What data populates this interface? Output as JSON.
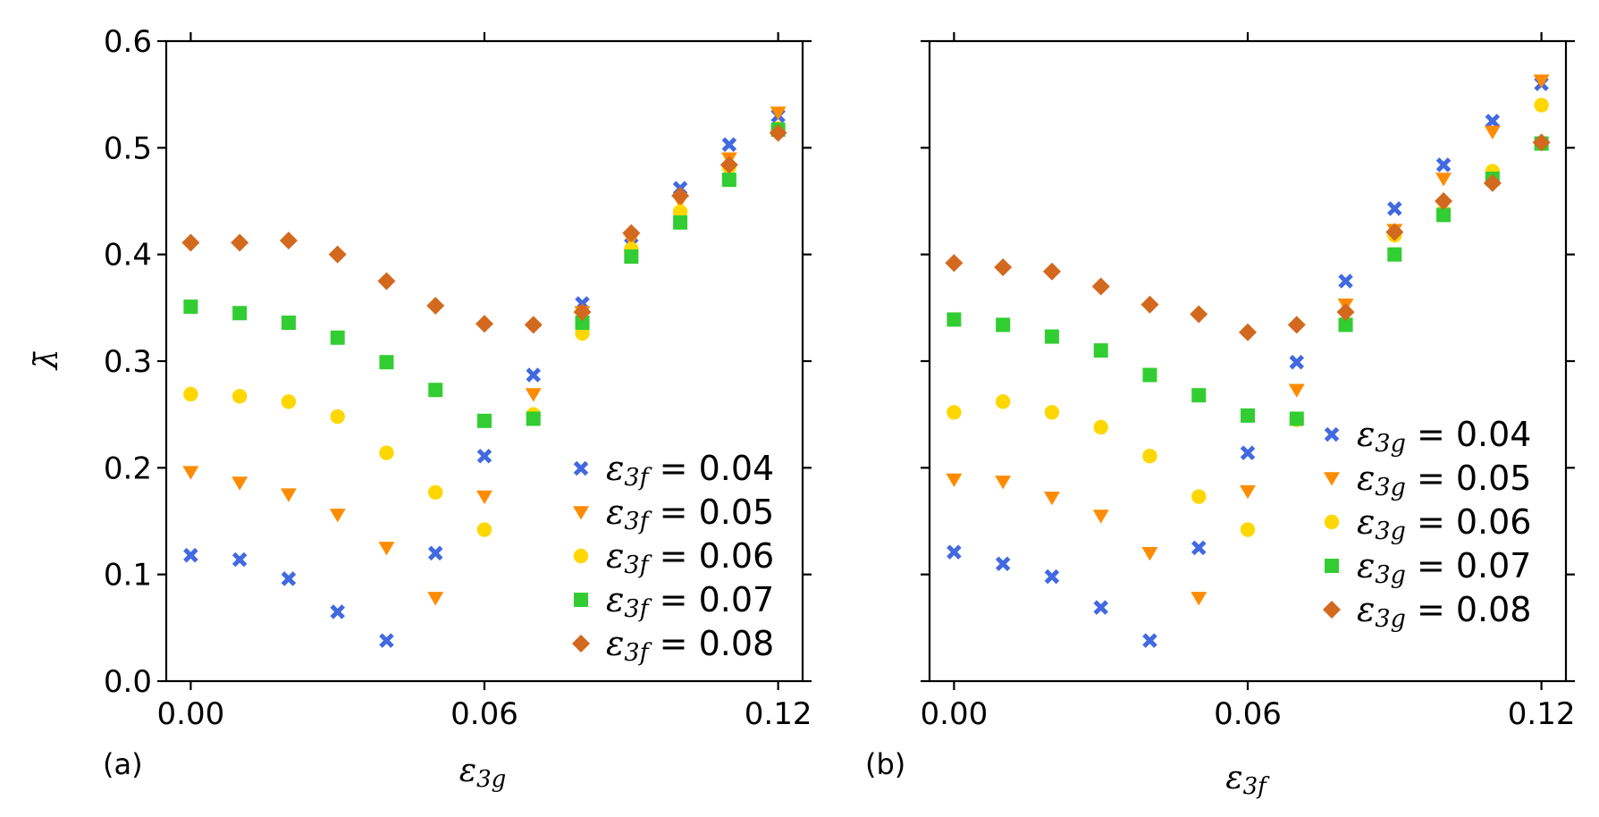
{
  "colors": {
    "s1": "#4169e1",
    "s2": "#ff8c00",
    "s3": "#ffd700",
    "s4": "#32cd32",
    "s5": "#d2691e"
  },
  "axes": {
    "ylabel": "λ̄",
    "yticks": [
      "0.0",
      "0.1",
      "0.2",
      "0.3",
      "0.4",
      "0.5",
      "0.6"
    ],
    "xticks": [
      "0.00",
      "0.06",
      "0.12"
    ]
  },
  "chart_data": [
    {
      "type": "scatter",
      "panel_label": "(a)",
      "xlabel_main": "ε",
      "xlabel_sub": "3g",
      "ylim": [
        0,
        0.6
      ],
      "xlim": [
        -0.005,
        0.125
      ],
      "xticks": [
        0,
        0.06,
        0.12
      ],
      "yticks": [
        0,
        0.1,
        0.2,
        0.3,
        0.4,
        0.5,
        0.6
      ],
      "x": [
        0,
        0.01,
        0.02,
        0.03,
        0.04,
        0.05,
        0.06,
        0.07,
        0.08,
        0.09,
        0.1,
        0.11,
        0.12
      ],
      "series": [
        {
          "name": "ε3f = 0.04",
          "main": "ε",
          "sub": "3f",
          "eq": " = 0.04",
          "marker": "x",
          "color": "#4169e1",
          "values": [
            0.118,
            0.114,
            0.096,
            0.065,
            0.038,
            0.12,
            0.211,
            0.287,
            0.354,
            0.417,
            0.462,
            0.503,
            0.53
          ]
        },
        {
          "name": "ε3f = 0.05",
          "main": "ε",
          "sub": "3f",
          "eq": " = 0.05",
          "marker": "v",
          "color": "#ff8c00",
          "values": [
            0.196,
            0.186,
            0.175,
            0.156,
            0.125,
            0.078,
            0.173,
            0.269,
            0.346,
            0.414,
            0.45,
            0.49,
            0.533
          ]
        },
        {
          "name": "ε3f = 0.06",
          "main": "ε",
          "sub": "3f",
          "eq": " = 0.06",
          "marker": "o",
          "color": "#ffd700",
          "values": [
            0.269,
            0.267,
            0.262,
            0.248,
            0.214,
            0.177,
            0.142,
            0.25,
            0.326,
            0.405,
            0.44,
            0.482,
            0.518
          ]
        },
        {
          "name": "ε3f = 0.07",
          "main": "ε",
          "sub": "3f",
          "eq": " = 0.07",
          "marker": "s",
          "color": "#32cd32",
          "values": [
            0.351,
            0.345,
            0.336,
            0.322,
            0.299,
            0.273,
            0.244,
            0.246,
            0.336,
            0.398,
            0.43,
            0.47,
            0.517
          ]
        },
        {
          "name": "ε3f = 0.08",
          "main": "ε",
          "sub": "3f",
          "eq": " = 0.08",
          "marker": "D",
          "color": "#d2691e",
          "values": [
            0.411,
            0.411,
            0.413,
            0.4,
            0.375,
            0.352,
            0.335,
            0.334,
            0.346,
            0.42,
            0.455,
            0.484,
            0.514
          ]
        }
      ]
    },
    {
      "type": "scatter",
      "panel_label": "(b)",
      "xlabel_main": "ε",
      "xlabel_sub": "3f",
      "ylim": [
        0,
        0.6
      ],
      "xlim": [
        -0.005,
        0.125
      ],
      "xticks": [
        0,
        0.06,
        0.12
      ],
      "yticks": [
        0,
        0.1,
        0.2,
        0.3,
        0.4,
        0.5,
        0.6
      ],
      "x": [
        0,
        0.01,
        0.02,
        0.03,
        0.04,
        0.05,
        0.06,
        0.07,
        0.08,
        0.09,
        0.1,
        0.11,
        0.12
      ],
      "series": [
        {
          "name": "ε3g = 0.04",
          "main": "ε",
          "sub": "3g",
          "eq": " = 0.04",
          "marker": "x",
          "color": "#4169e1",
          "values": [
            0.121,
            0.11,
            0.098,
            0.069,
            0.038,
            0.125,
            0.214,
            0.299,
            0.375,
            0.443,
            0.484,
            0.525,
            0.56
          ]
        },
        {
          "name": "ε3g = 0.05",
          "main": "ε",
          "sub": "3g",
          "eq": " = 0.05",
          "marker": "v",
          "color": "#ff8c00",
          "values": [
            0.189,
            0.187,
            0.172,
            0.155,
            0.12,
            0.078,
            0.178,
            0.273,
            0.353,
            0.423,
            0.471,
            0.515,
            0.563
          ]
        },
        {
          "name": "ε3g = 0.06",
          "main": "ε",
          "sub": "3g",
          "eq": " = 0.06",
          "marker": "o",
          "color": "#ffd700",
          "values": [
            0.252,
            0.262,
            0.252,
            0.238,
            0.211,
            0.173,
            0.142,
            0.245,
            0.335,
            0.418,
            0.44,
            0.478,
            0.54
          ]
        },
        {
          "name": "ε3g = 0.07",
          "main": "ε",
          "sub": "3g",
          "eq": " = 0.07",
          "marker": "s",
          "color": "#32cd32",
          "values": [
            0.339,
            0.334,
            0.323,
            0.31,
            0.287,
            0.268,
            0.249,
            0.246,
            0.334,
            0.4,
            0.437,
            0.471,
            0.504
          ]
        },
        {
          "name": "ε3g = 0.08",
          "main": "ε",
          "sub": "3g",
          "eq": " = 0.08",
          "marker": "D",
          "color": "#d2691e",
          "values": [
            0.392,
            0.388,
            0.384,
            0.37,
            0.353,
            0.344,
            0.327,
            0.334,
            0.346,
            0.421,
            0.45,
            0.467,
            0.505
          ]
        }
      ]
    }
  ]
}
